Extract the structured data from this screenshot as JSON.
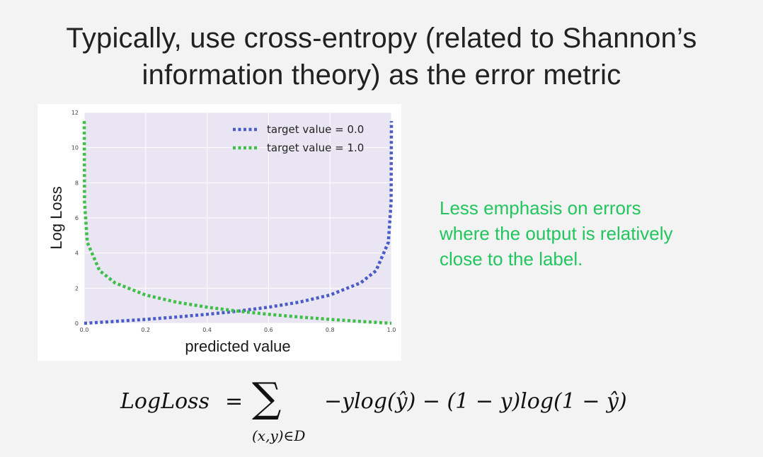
{
  "slide": {
    "title_line1": "Typically, use cross-entropy (related to Shannon’s",
    "title_line2": "information theory) as the error metric"
  },
  "annotation": {
    "line1": "Less emphasis on errors",
    "line2": "where the output is relatively",
    "line3": "close to the label."
  },
  "formula": {
    "lhs": "LogLoss",
    "equals": "=",
    "sum_symbol": "∑",
    "subscript": "(x,y)∈D",
    "rhs": "−ylog(ŷ) − (1 − y)log(1 − ŷ)"
  },
  "chart_data": {
    "type": "line",
    "title": "",
    "xlabel": "predicted value",
    "ylabel": "Log Loss",
    "xlim": [
      0.0,
      1.0
    ],
    "ylim": [
      0,
      12
    ],
    "x_ticks": [
      "0.0",
      "0.2",
      "0.4",
      "0.6",
      "0.8",
      "1.0"
    ],
    "y_ticks": [
      "0",
      "2",
      "4",
      "6",
      "8",
      "10",
      "12"
    ],
    "grid": true,
    "legend_position": "top-right",
    "series": [
      {
        "name": "target value = 0.0",
        "color": "#4a5cc7",
        "style": "dotted",
        "x": [
          0.0,
          0.1,
          0.2,
          0.3,
          0.4,
          0.5,
          0.6,
          0.7,
          0.8,
          0.9,
          0.95,
          0.99,
          0.999,
          0.99999
        ],
        "y": [
          0.0,
          0.105,
          0.223,
          0.357,
          0.511,
          0.693,
          0.916,
          1.204,
          1.609,
          2.303,
          2.996,
          4.605,
          6.908,
          11.513
        ]
      },
      {
        "name": "target value = 1.0",
        "color": "#3fbf4a",
        "style": "dotted",
        "x": [
          1e-05,
          0.001,
          0.01,
          0.05,
          0.1,
          0.2,
          0.3,
          0.4,
          0.5,
          0.6,
          0.7,
          0.8,
          0.9,
          1.0
        ],
        "y": [
          11.513,
          6.908,
          4.605,
          2.996,
          2.303,
          1.609,
          1.204,
          0.916,
          0.693,
          0.511,
          0.357,
          0.223,
          0.105,
          0.0
        ]
      }
    ]
  }
}
